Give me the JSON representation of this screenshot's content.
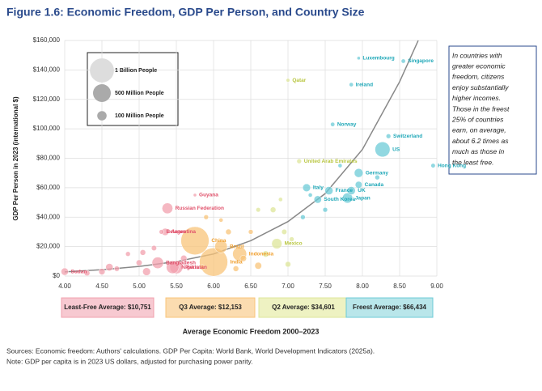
{
  "chart_data": {
    "type": "bubble",
    "title": "Figure 1.6: Economic Freedom, GDP Per Person, and Country Size",
    "xlabel": "Average Economic Freedom 2000–2023",
    "ylabel": "GDP Per Person in 2023 (international $)",
    "xlim": [
      4,
      9
    ],
    "ylim": [
      0,
      160000
    ],
    "xticks": [
      {
        "value": 4,
        "label": "4.00"
      },
      {
        "value": 4.5,
        "label": "4.50"
      },
      {
        "value": 5,
        "label": "5.00"
      },
      {
        "value": 5.5,
        "label": "5.50"
      },
      {
        "value": 6,
        "label": "6.00"
      },
      {
        "value": 6.5,
        "label": "6.50"
      },
      {
        "value": 7,
        "label": "7.00"
      },
      {
        "value": 7.5,
        "label": "7.50"
      },
      {
        "value": 8,
        "label": "8.00"
      },
      {
        "value": 8.5,
        "label": "8.50"
      },
      {
        "value": 9,
        "label": "9.00"
      }
    ],
    "yticks": [
      {
        "value": 0,
        "label": "$0"
      },
      {
        "value": 20000,
        "label": "$20,000"
      },
      {
        "value": 40000,
        "label": "$40,000"
      },
      {
        "value": 60000,
        "label": "$60,000"
      },
      {
        "value": 80000,
        "label": "$80,000"
      },
      {
        "value": 100000,
        "label": "$100,000"
      },
      {
        "value": 120000,
        "label": "$120,000"
      },
      {
        "value": 140000,
        "label": "$140,000"
      },
      {
        "value": 160000,
        "label": "$160,000"
      }
    ],
    "grid": true,
    "size_legend": [
      {
        "value": 1000,
        "label": "1 Billion People"
      },
      {
        "value": 500,
        "label": "500 Million People"
      },
      {
        "value": 100,
        "label": "100 Million People"
      }
    ],
    "trend": {
      "color": "#888888",
      "x": [
        4,
        4.5,
        5,
        5.5,
        6,
        6.5,
        7,
        7.5,
        8,
        8.5,
        8.75
      ],
      "values": [
        2800,
        4300,
        6500,
        9800,
        15000,
        24000,
        37000,
        56000,
        86000,
        132000,
        160000
      ]
    },
    "series": [
      {
        "name": "Least-Free Average: $10,751",
        "color": "#f2a0ad",
        "text_color": "#e0506a",
        "box_color": "#f7c9d1",
        "x": [
          4.0,
          5.3,
          5.35,
          5.38,
          5.75,
          5.25,
          5.45,
          5.5,
          4.3,
          4.5,
          4.7,
          4.85,
          5.0,
          5.1,
          5.2,
          5.6,
          4.6,
          5.05
        ],
        "values": [
          3000,
          30000,
          30000,
          46000,
          55000,
          9000,
          6000,
          6000,
          2000,
          3000,
          5000,
          15000,
          9000,
          3000,
          19000,
          12000,
          6000,
          16000
        ],
        "sizes": [
          48,
          9,
          46,
          144,
          1,
          173,
          223,
          240,
          20,
          30,
          15,
          10,
          25,
          60,
          15,
          30,
          50,
          20
        ],
        "labels": [
          "Sudan",
          "Belarus",
          "Argentina",
          "Russian Federation",
          "Guyana",
          "Bangladesh",
          "Nigeria",
          "Pakistan",
          null,
          null,
          null,
          null,
          null,
          null,
          null,
          null,
          null,
          null
        ]
      },
      {
        "name": "Q3 Average: $12,153",
        "color": "#f8c47a",
        "text_color": "#f0a030",
        "box_color": "#fbdcb0",
        "x": [
          5.75,
          6.0,
          6.1,
          6.35,
          5.9,
          6.1,
          6.2,
          6.4,
          5.85,
          6.3,
          6.6,
          6.5
        ],
        "values": [
          24000,
          9500,
          20000,
          15000,
          40000,
          38000,
          30000,
          12000,
          6000,
          5000,
          7000,
          30000
        ],
        "sizes": [
          1410,
          1430,
          216,
          278,
          10,
          5,
          20,
          30,
          15,
          20,
          40,
          10
        ],
        "labels": [
          "China",
          "India",
          "Brazil",
          "Indonesia",
          null,
          null,
          null,
          null,
          null,
          null,
          null,
          null
        ]
      },
      {
        "name": "Q2 Average: $34,601",
        "color": "#dde59a",
        "text_color": "#b9c640",
        "box_color": "#eef2c2",
        "x": [
          7.0,
          7.15,
          6.85,
          6.8,
          6.95,
          6.7,
          7.05,
          6.6,
          7.0,
          6.9
        ],
        "values": [
          133000,
          78000,
          22000,
          45000,
          30000,
          15000,
          25000,
          45000,
          8000,
          52000
        ],
        "sizes": [
          3,
          10,
          129,
          20,
          15,
          30,
          10,
          8,
          20,
          5
        ],
        "labels": [
          "Qatar",
          "United Arab Emirates",
          "Mexico",
          null,
          null,
          null,
          null,
          null,
          null,
          null
        ]
      },
      {
        "name": "Freest Average: $66,434",
        "color": "#6ccbd7",
        "text_color": "#20a8b8",
        "box_color": "#b9e6ea",
        "x": [
          7.95,
          8.55,
          7.85,
          7.6,
          8.35,
          8.27,
          8.95,
          7.95,
          7.95,
          7.85,
          7.8,
          7.55,
          7.25,
          7.4,
          7.5,
          7.7,
          7.2,
          8.2,
          7.3
        ],
        "values": [
          148000,
          146000,
          130000,
          103000,
          95000,
          86000,
          75000,
          70000,
          62000,
          58000,
          53000,
          58000,
          60000,
          52000,
          45000,
          75000,
          40000,
          67000,
          55000
        ],
        "sizes": [
          1,
          6,
          5,
          6,
          9,
          335,
          7,
          84,
          40,
          68,
          124,
          68,
          59,
          52,
          10,
          5,
          10,
          10,
          5
        ],
        "labels": [
          "Luxembourg",
          "Singapore",
          "Ireland",
          "Norway",
          "Switzerland",
          "US",
          "Hong Kong",
          "Germany",
          "Canada",
          "UK",
          "Japan",
          "France",
          "Italy",
          "South Korea",
          null,
          null,
          null,
          null,
          null
        ]
      }
    ],
    "annotation": [
      "In countries with",
      "greater economic",
      "freedom, citizens",
      "enjoy substantially",
      "higher incomes.",
      "Those in the freest",
      "25% of countries",
      "earn, on average,",
      "about 6.2 times as",
      "much as those in",
      "the least free."
    ],
    "sources": [
      "Sources: Economic freedom: Authors' calculations. GDP Per Capita: World Bank, World Development Indicators (2025a).",
      "Note: GDP per capita is in 2023 US dollars, adjusted for purchasing power parity."
    ]
  }
}
